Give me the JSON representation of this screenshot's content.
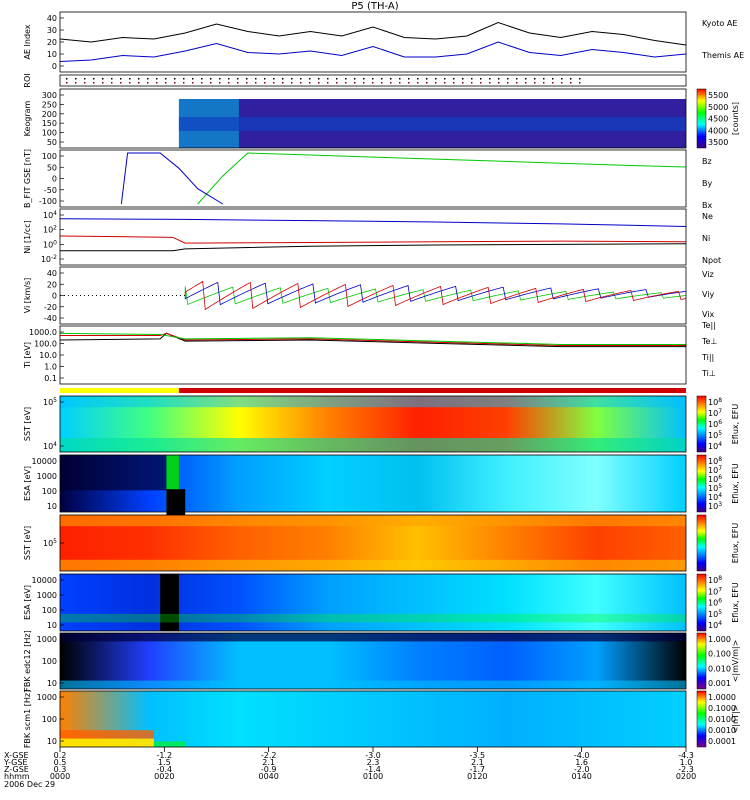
{
  "chart_data": {
    "type": "multi-panel",
    "title": "P5 (TH-A)",
    "panels": [
      {
        "id": "ae",
        "ylabel": "AE Index",
        "yticks": [
          "40",
          "30",
          "20",
          "10",
          "0"
        ],
        "series": [
          {
            "name": "Kyoto AE",
            "color": "#000000",
            "x": [
              0,
              0.05,
              0.1,
              0.15,
              0.2,
              0.25,
              0.3,
              0.35,
              0.4,
              0.45,
              0.5,
              0.55,
              0.6,
              0.65,
              0.7,
              0.75,
              0.8,
              0.85,
              0.9,
              0.95,
              1.0
            ],
            "values": [
              22,
              20,
              23,
              22,
              26,
              32,
              27,
              24,
              27,
              24,
              30,
              23,
              22,
              24,
              33,
              26,
              23,
              27,
              25,
              21,
              18
            ]
          },
          {
            "name": "Themis AE",
            "color": "#0000c8",
            "x": [
              0,
              0.05,
              0.1,
              0.15,
              0.2,
              0.25,
              0.3,
              0.35,
              0.4,
              0.45,
              0.5,
              0.55,
              0.6,
              0.65,
              0.7,
              0.75,
              0.8,
              0.85,
              0.9,
              0.95,
              1.0
            ],
            "values": [
              7,
              8,
              11,
              10,
              14,
              19,
              13,
              12,
              14,
              11,
              17,
              10,
              10,
              12,
              20,
              13,
              11,
              15,
              13,
              10,
              12
            ]
          }
        ]
      },
      {
        "id": "roi",
        "ylabel": "ROI"
      },
      {
        "id": "keogram",
        "ylabel": "Keogram",
        "yticks": [
          "300",
          "250",
          "200",
          "150",
          "100",
          "50"
        ],
        "colorbar": {
          "label": "[counts]",
          "ticks": [
            "5500",
            "5000",
            "4500",
            "4000",
            "3500"
          ]
        }
      },
      {
        "id": "bfield",
        "ylabel": "B_FIT GSE [nT]",
        "yticks": [
          "100",
          "50",
          "0",
          "-50",
          "-100"
        ],
        "series": [
          {
            "name": "Bz",
            "color": "#d00000",
            "x": [],
            "values": []
          },
          {
            "name": "By",
            "color": "#00c800",
            "x": [
              0.22,
              0.26,
              0.3,
              0.4,
              0.5,
              0.6,
              0.7,
              0.8,
              0.9,
              1.0
            ],
            "values": [
              -100,
              10,
              100,
              92,
              84,
              76,
              68,
              60,
              52,
              45
            ]
          },
          {
            "name": "Bx",
            "color": "#0000c8",
            "x": [
              0.098,
              0.108,
              0.16,
              0.19,
              0.22,
              0.26
            ],
            "values": [
              -100,
              100,
              100,
              40,
              -40,
              -100
            ]
          }
        ]
      },
      {
        "id": "density",
        "ylabel": "Ni [1/cc]",
        "yticks": [
          "10^4",
          "10^2",
          "10^0",
          "10^-2"
        ],
        "series": [
          {
            "name": "Ne",
            "color": "#d00000",
            "x": [
              0,
              0.18,
              0.2,
              0.4,
              0.6,
              0.8,
              1.0
            ],
            "values": [
              1.4,
              1.2,
              0.3,
              0.4,
              0.5,
              0.6,
              0.5
            ]
          },
          {
            "name": "Ni",
            "color": "#0000c8",
            "x": [
              0,
              0.2,
              0.4,
              0.6,
              0.8,
              1.0
            ],
            "values": [
              4.1,
              4.0,
              3.8,
              3.6,
              3.3,
              2.9
            ]
          },
          {
            "name": "Npot",
            "color": "#000000",
            "x": [
              0,
              0.18,
              0.2,
              0.4,
              0.6,
              0.8,
              1.0
            ],
            "values": [
              -0.9,
              -0.9,
              -0.6,
              -0.2,
              0,
              0.1,
              0.2
            ]
          }
        ]
      },
      {
        "id": "velocity",
        "ylabel": "Vi [km/s]",
        "yticks": [
          "40",
          "20",
          "0",
          "-20",
          "-40"
        ],
        "series": [
          {
            "name": "Viz",
            "color": "#d00000",
            "x": [],
            "values": []
          },
          {
            "name": "Viy",
            "color": "#00c800",
            "x": [],
            "values": []
          },
          {
            "name": "Vix",
            "color": "#0000c8",
            "x": [],
            "values": []
          }
        ]
      },
      {
        "id": "temperature",
        "ylabel": "Ti [eV]",
        "yticks": [
          "1000.0",
          "100.0",
          "10.0",
          "1.0",
          "0.1"
        ],
        "series": [
          {
            "name": "Te||",
            "color": "#000000",
            "x": [
              0,
              0.16,
              0.17,
              0.2,
              0.4,
              0.6,
              0.8,
              1.0
            ],
            "values": [
              2.6,
              2.7,
              3.2,
              2.5,
              2.6,
              2.3,
              2.0,
              2.0
            ]
          },
          {
            "name": "Te⊥",
            "color": "#d00000",
            "x": [
              0,
              0.16,
              0.17,
              0.2,
              0.4,
              0.6,
              0.8,
              1.0
            ],
            "values": [
              3.0,
              3.0,
              3.2,
              2.6,
              2.7,
              2.4,
              2.1,
              2.1
            ]
          },
          {
            "name": "Ti||",
            "color": "#00c800",
            "x": [
              0,
              0.16,
              0.2,
              0.4,
              0.6,
              0.8,
              1.0
            ],
            "values": [
              3.2,
              3.1,
              2.7,
              2.8,
              2.5,
              2.2,
              2.2
            ]
          },
          {
            "name": "Ti⊥",
            "color": "#0000c8",
            "x": [],
            "values": []
          }
        ]
      },
      {
        "id": "sst_i",
        "ylabel": "SST [eV]",
        "yticks": [
          "10^5",
          "10^4"
        ],
        "colorbar": {
          "label": "Eflux, EFU",
          "ticks": [
            "10^8",
            "10^7",
            "10^6",
            "10^5",
            "10^4"
          ]
        }
      },
      {
        "id": "esa_i",
        "ylabel": "ESA [eV]",
        "yticks": [
          "10000",
          "1000",
          "100",
          "10"
        ],
        "colorbar": {
          "label": "Eflux, EFU",
          "ticks": [
            "10^8",
            "10^7",
            "10^6",
            "10^5",
            "10^4",
            "10^3"
          ]
        }
      },
      {
        "id": "sst_e",
        "ylabel": "SST [eV]",
        "yticks": [
          "10^5"
        ],
        "colorbar": {
          "label": "Eflux, EFU",
          "ticks": []
        }
      },
      {
        "id": "esa_e",
        "ylabel": "ESA [eV]",
        "yticks": [
          "10000",
          "1000",
          "100",
          "10"
        ],
        "colorbar": {
          "label": "Eflux, EFU",
          "ticks": [
            "10^8",
            "10^7",
            "10^6",
            "10^5",
            "10^4"
          ]
        }
      },
      {
        "id": "fbk_e",
        "ylabel": "FBK edc12 [Hz]",
        "yticks": [
          "1000",
          "100",
          "10"
        ],
        "colorbar": {
          "label": "<|mV/m|>",
          "ticks": [
            "1.000",
            "0.100",
            "0.010",
            "0.001"
          ]
        }
      },
      {
        "id": "fbk_b",
        "ylabel": "FBK scm1 [Hz]",
        "yticks": [
          "1000",
          "100",
          "10"
        ],
        "colorbar": {
          "label": "<|nT|>",
          "ticks": [
            "1.0000",
            "0.1000",
            "0.0100",
            "0.0010",
            "0.0001"
          ]
        }
      }
    ],
    "xaxis": {
      "rows": [
        {
          "label": "X-GSE",
          "values": [
            "0.2",
            "-1.2",
            "-2.2",
            "-3.0",
            "-3.5",
            "-4.0",
            "-4.3"
          ]
        },
        {
          "label": "Y-GSE",
          "values": [
            "0.5",
            "1.5",
            "2.1",
            "2.3",
            "2.1",
            "1.6",
            "1.0"
          ]
        },
        {
          "label": "Z-GSE",
          "values": [
            "0.3",
            "-0.4",
            "-0.9",
            "-1.4",
            "-1.7",
            "-2.0",
            "-2.3"
          ]
        },
        {
          "label": "hhmm",
          "values": [
            "0000",
            "0020",
            "0040",
            "0100",
            "0120",
            "0140",
            "0200"
          ]
        }
      ],
      "date": "2006 Dec 29"
    }
  }
}
